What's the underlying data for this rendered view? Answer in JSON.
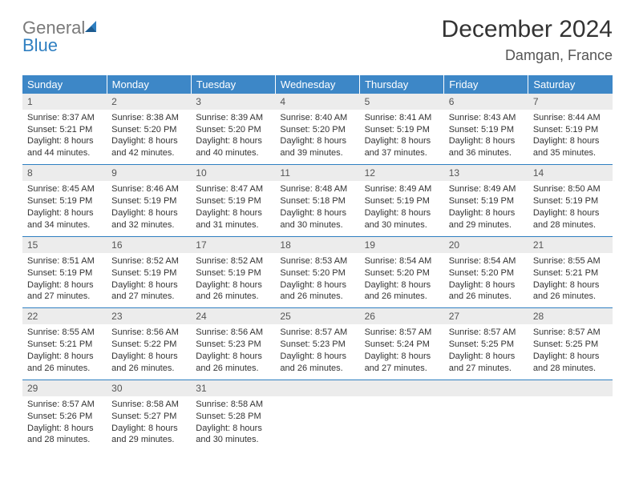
{
  "logo": {
    "textGray": "General",
    "textBlue": "Blue"
  },
  "title": "December 2024",
  "location": "Damgan, France",
  "colors": {
    "headerBg": "#3d87c7",
    "borderBlue": "#2f7fc1",
    "dayNumBg": "#ececec",
    "logoGray": "#7a7a7a",
    "logoBlue": "#2f7fc1"
  },
  "weekdays": [
    "Sunday",
    "Monday",
    "Tuesday",
    "Wednesday",
    "Thursday",
    "Friday",
    "Saturday"
  ],
  "weeks": [
    [
      {
        "n": "1",
        "sr": "8:37 AM",
        "ss": "5:21 PM",
        "dl": "8 hours and 44 minutes."
      },
      {
        "n": "2",
        "sr": "8:38 AM",
        "ss": "5:20 PM",
        "dl": "8 hours and 42 minutes."
      },
      {
        "n": "3",
        "sr": "8:39 AM",
        "ss": "5:20 PM",
        "dl": "8 hours and 40 minutes."
      },
      {
        "n": "4",
        "sr": "8:40 AM",
        "ss": "5:20 PM",
        "dl": "8 hours and 39 minutes."
      },
      {
        "n": "5",
        "sr": "8:41 AM",
        "ss": "5:19 PM",
        "dl": "8 hours and 37 minutes."
      },
      {
        "n": "6",
        "sr": "8:43 AM",
        "ss": "5:19 PM",
        "dl": "8 hours and 36 minutes."
      },
      {
        "n": "7",
        "sr": "8:44 AM",
        "ss": "5:19 PM",
        "dl": "8 hours and 35 minutes."
      }
    ],
    [
      {
        "n": "8",
        "sr": "8:45 AM",
        "ss": "5:19 PM",
        "dl": "8 hours and 34 minutes."
      },
      {
        "n": "9",
        "sr": "8:46 AM",
        "ss": "5:19 PM",
        "dl": "8 hours and 32 minutes."
      },
      {
        "n": "10",
        "sr": "8:47 AM",
        "ss": "5:19 PM",
        "dl": "8 hours and 31 minutes."
      },
      {
        "n": "11",
        "sr": "8:48 AM",
        "ss": "5:18 PM",
        "dl": "8 hours and 30 minutes."
      },
      {
        "n": "12",
        "sr": "8:49 AM",
        "ss": "5:19 PM",
        "dl": "8 hours and 30 minutes."
      },
      {
        "n": "13",
        "sr": "8:49 AM",
        "ss": "5:19 PM",
        "dl": "8 hours and 29 minutes."
      },
      {
        "n": "14",
        "sr": "8:50 AM",
        "ss": "5:19 PM",
        "dl": "8 hours and 28 minutes."
      }
    ],
    [
      {
        "n": "15",
        "sr": "8:51 AM",
        "ss": "5:19 PM",
        "dl": "8 hours and 27 minutes."
      },
      {
        "n": "16",
        "sr": "8:52 AM",
        "ss": "5:19 PM",
        "dl": "8 hours and 27 minutes."
      },
      {
        "n": "17",
        "sr": "8:52 AM",
        "ss": "5:19 PM",
        "dl": "8 hours and 26 minutes."
      },
      {
        "n": "18",
        "sr": "8:53 AM",
        "ss": "5:20 PM",
        "dl": "8 hours and 26 minutes."
      },
      {
        "n": "19",
        "sr": "8:54 AM",
        "ss": "5:20 PM",
        "dl": "8 hours and 26 minutes."
      },
      {
        "n": "20",
        "sr": "8:54 AM",
        "ss": "5:20 PM",
        "dl": "8 hours and 26 minutes."
      },
      {
        "n": "21",
        "sr": "8:55 AM",
        "ss": "5:21 PM",
        "dl": "8 hours and 26 minutes."
      }
    ],
    [
      {
        "n": "22",
        "sr": "8:55 AM",
        "ss": "5:21 PM",
        "dl": "8 hours and 26 minutes."
      },
      {
        "n": "23",
        "sr": "8:56 AM",
        "ss": "5:22 PM",
        "dl": "8 hours and 26 minutes."
      },
      {
        "n": "24",
        "sr": "8:56 AM",
        "ss": "5:23 PM",
        "dl": "8 hours and 26 minutes."
      },
      {
        "n": "25",
        "sr": "8:57 AM",
        "ss": "5:23 PM",
        "dl": "8 hours and 26 minutes."
      },
      {
        "n": "26",
        "sr": "8:57 AM",
        "ss": "5:24 PM",
        "dl": "8 hours and 27 minutes."
      },
      {
        "n": "27",
        "sr": "8:57 AM",
        "ss": "5:25 PM",
        "dl": "8 hours and 27 minutes."
      },
      {
        "n": "28",
        "sr": "8:57 AM",
        "ss": "5:25 PM",
        "dl": "8 hours and 28 minutes."
      }
    ],
    [
      {
        "n": "29",
        "sr": "8:57 AM",
        "ss": "5:26 PM",
        "dl": "8 hours and 28 minutes."
      },
      {
        "n": "30",
        "sr": "8:58 AM",
        "ss": "5:27 PM",
        "dl": "8 hours and 29 minutes."
      },
      {
        "n": "31",
        "sr": "8:58 AM",
        "ss": "5:28 PM",
        "dl": "8 hours and 30 minutes."
      },
      {
        "empty": true
      },
      {
        "empty": true
      },
      {
        "empty": true
      },
      {
        "empty": true
      }
    ]
  ],
  "labels": {
    "sunrise": "Sunrise:",
    "sunset": "Sunset:",
    "daylight": "Daylight:"
  }
}
